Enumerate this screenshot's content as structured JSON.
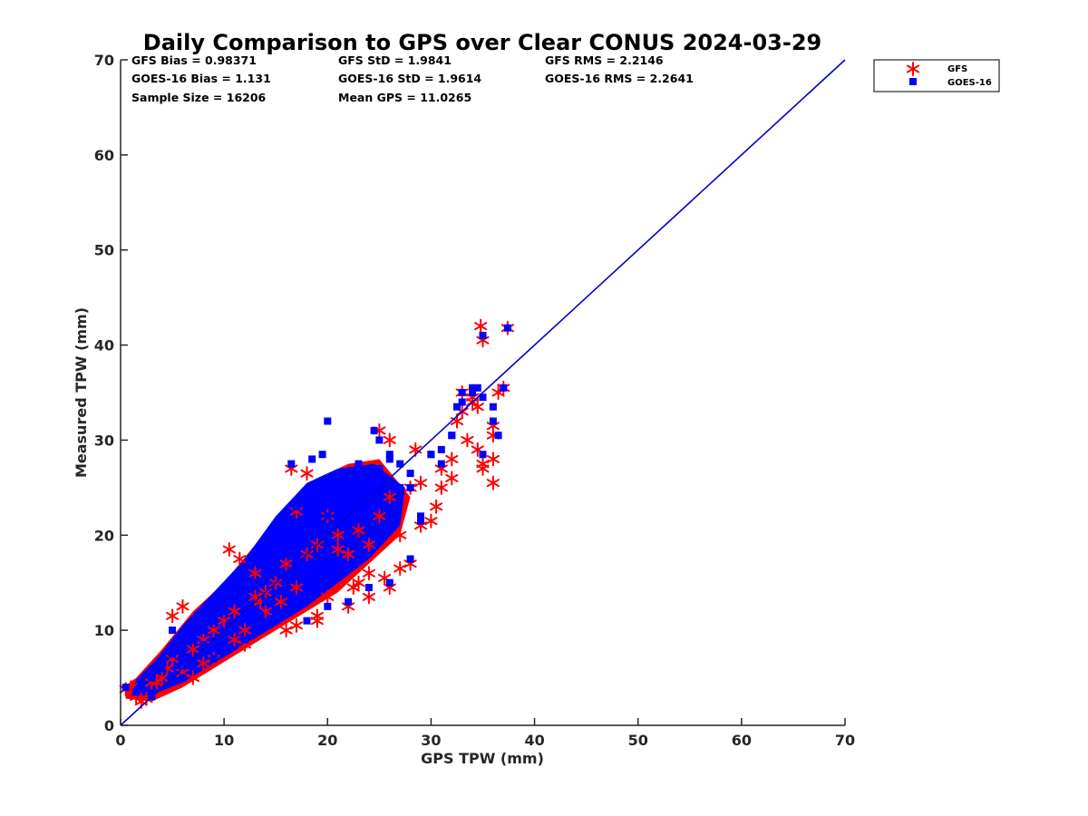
{
  "chart_data": {
    "type": "scatter",
    "title": "Daily Comparison to GPS over Clear CONUS 2024-03-29",
    "xlabel": "GPS TPW (mm)",
    "ylabel": "Measured TPW (mm)",
    "xlim": [
      0,
      70
    ],
    "ylim": [
      0,
      70
    ],
    "xticks": [
      "0",
      "10",
      "20",
      "30",
      "40",
      "50",
      "60",
      "70"
    ],
    "yticks": [
      "0",
      "10",
      "20",
      "30",
      "40",
      "50",
      "60",
      "70"
    ],
    "grid": false,
    "legend_position": "outside-top-right",
    "stats": [
      [
        "GFS Bias = 0.98371",
        "GFS StD = 1.9841",
        "GFS RMS = 2.2146"
      ],
      [
        "GOES-16 Bias = 1.131",
        "GOES-16 StD = 1.9614",
        "GOES-16 RMS = 2.2641"
      ],
      [
        "Sample Size = 16206",
        "Mean GPS = 11.0265"
      ]
    ],
    "reference_line": {
      "name": "1:1",
      "x": [
        0,
        70
      ],
      "y": [
        0,
        70
      ],
      "color": "#0000cc"
    },
    "series": [
      {
        "name": "GFS",
        "marker": "asterisk",
        "color": "#ff0000",
        "x": [
          0.5,
          1.5,
          2.5,
          3.0,
          4.0,
          5.0,
          6.0,
          7.0,
          8.0,
          9.0,
          10.0,
          11.0,
          12.0,
          13.0,
          14.0,
          15.0,
          16.0,
          17.0,
          18.0,
          19.0,
          20.0,
          21.0,
          22.0,
          23.0,
          24.0,
          25.0,
          26.0,
          27.0,
          28.0,
          29.0,
          30.0,
          31.0,
          32.0,
          33.0,
          34.0,
          35.0,
          36.0,
          37.0,
          5.0,
          6.0,
          10.5,
          11.5,
          13.0,
          16.5,
          17.0,
          18.0,
          14.0,
          15.5,
          17.0,
          19.0,
          20.0,
          22.0,
          22.5,
          24.0,
          25.0,
          25.5,
          26.0,
          27.0,
          28.0,
          28.5,
          29.0,
          30.5,
          31.0,
          32.5,
          33.0,
          34.0,
          34.5,
          35.0,
          36.0,
          36.5,
          36.0,
          35.0,
          37.4,
          34.8,
          32.0,
          33.5,
          34.5,
          36.0,
          24.0,
          26.0,
          21.0,
          16.0,
          19.0,
          23.0,
          2.0,
          1.0,
          7.0,
          9.0,
          12.0,
          3.5,
          4.5,
          8.0,
          11.0,
          13.5
        ],
        "y": [
          3.8,
          3.0,
          2.8,
          4.5,
          5.0,
          7.0,
          5.5,
          8.0,
          9.0,
          10.0,
          11.0,
          12.0,
          10.0,
          13.5,
          14.0,
          15.0,
          17.0,
          14.5,
          18.0,
          19.0,
          22.0,
          20.0,
          18.0,
          20.5,
          19.0,
          22.0,
          24.0,
          20.0,
          25.0,
          25.5,
          21.5,
          25.0,
          26.0,
          33.0,
          34.0,
          27.5,
          28.0,
          35.5,
          11.5,
          12.5,
          18.5,
          17.5,
          16.0,
          27.0,
          22.5,
          26.5,
          12.0,
          13.0,
          10.5,
          11.0,
          13.5,
          12.5,
          14.5,
          13.5,
          31.0,
          15.5,
          30.0,
          16.5,
          17.0,
          29.0,
          21.0,
          23.0,
          27.0,
          32.0,
          35.0,
          34.5,
          33.5,
          27.0,
          31.5,
          35.0,
          25.5,
          40.5,
          41.8,
          42.0,
          28.0,
          30.0,
          29.0,
          30.5,
          16.0,
          14.5,
          18.5,
          10.0,
          11.5,
          15.0,
          2.5,
          4.0,
          5.0,
          7.0,
          8.5,
          4.5,
          6.0,
          6.5,
          9.0,
          13.0
        ]
      },
      {
        "name": "GOES-16",
        "marker": "square",
        "color": "#0000ff",
        "x": [
          0.5,
          1.5,
          2.0,
          3.0,
          4.0,
          5.0,
          6.0,
          7.0,
          8.0,
          9.0,
          10.0,
          11.0,
          12.0,
          13.0,
          14.0,
          15.0,
          16.0,
          17.0,
          18.0,
          19.0,
          20.0,
          21.0,
          22.0,
          23.0,
          24.0,
          25.0,
          26.0,
          27.0,
          28.0,
          29.0,
          30.0,
          31.0,
          32.0,
          33.0,
          34.0,
          35.0,
          36.0,
          37.0,
          5.0,
          7.5,
          10.0,
          11.0,
          13.0,
          16.5,
          17.0,
          18.5,
          19.5,
          20.0,
          21.5,
          23.0,
          24.5,
          25.0,
          26.0,
          27.0,
          28.0,
          29.0,
          30.0,
          31.0,
          32.0,
          32.5,
          33.0,
          34.0,
          34.5,
          35.0,
          36.0,
          36.5,
          37.4,
          35.0,
          14.0,
          16.0,
          18.0,
          20.0,
          22.0,
          24.0,
          26.0,
          28.0,
          3.0,
          6.0,
          9.0,
          12.0,
          15.0,
          18.0,
          8.0,
          10.5,
          13.5
        ],
        "y": [
          4.0,
          3.5,
          4.5,
          5.0,
          6.0,
          7.5,
          8.0,
          9.0,
          10.0,
          11.0,
          12.0,
          13.5,
          14.5,
          15.0,
          16.5,
          17.0,
          18.0,
          19.0,
          20.0,
          21.0,
          22.0,
          23.0,
          24.0,
          25.5,
          26.0,
          27.0,
          28.0,
          25.0,
          26.5,
          22.0,
          28.5,
          29.0,
          30.5,
          35.0,
          35.5,
          34.5,
          32.0,
          35.5,
          10.0,
          11.5,
          14.0,
          15.5,
          17.5,
          27.5,
          23.0,
          28.0,
          28.5,
          32.0,
          26.0,
          27.5,
          31.0,
          30.0,
          28.5,
          27.5,
          25.0,
          21.5,
          28.5,
          27.5,
          30.5,
          33.5,
          34.0,
          35.0,
          35.5,
          41.0,
          33.5,
          30.5,
          41.8,
          28.5,
          13.0,
          12.0,
          11.0,
          12.5,
          13.0,
          14.5,
          15.0,
          17.5,
          3.0,
          5.0,
          7.0,
          9.0,
          12.0,
          15.0,
          8.5,
          10.5,
          11.5
        ]
      }
    ]
  }
}
